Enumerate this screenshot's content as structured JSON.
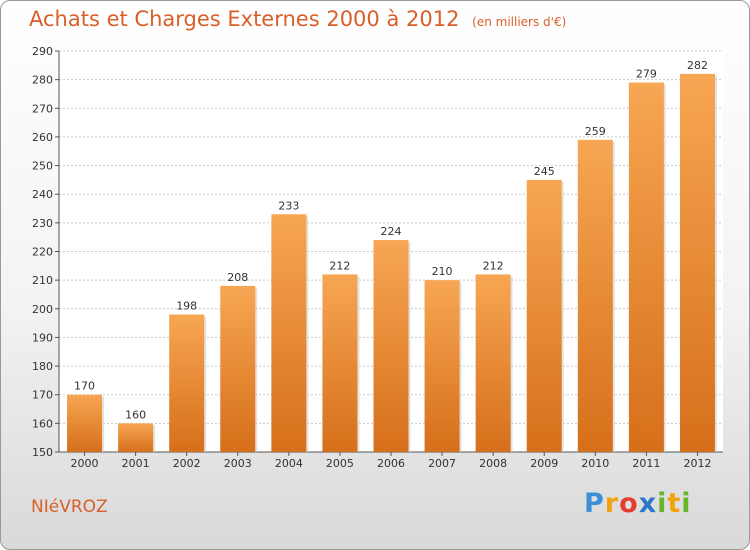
{
  "header": {
    "title": "Achats et Charges Externes 2000 à 2012",
    "subtitle": "(en milliers d'€)"
  },
  "footer": {
    "commune": "NIéVROZ",
    "logo_letters": [
      {
        "ch": "P",
        "color": "#3a8fd8"
      },
      {
        "ch": "r",
        "color": "#f2a20d"
      },
      {
        "ch": "o",
        "color": "#e43d2f"
      },
      {
        "ch": "x",
        "color": "#2b76c6"
      },
      {
        "ch": "i",
        "color": "#67b52b"
      },
      {
        "ch": "t",
        "color": "#f2a20d"
      },
      {
        "ch": "i",
        "color": "#67b52b"
      }
    ]
  },
  "colors": {
    "bar_top": "#f7a653",
    "bar_bottom": "#d66f1a",
    "accent": "#d95f2a",
    "grid": "#c8c8c8"
  },
  "chart_data": {
    "type": "bar",
    "categories": [
      "2000",
      "2001",
      "2002",
      "2003",
      "2004",
      "2005",
      "2006",
      "2007",
      "2008",
      "2009",
      "2010",
      "2011",
      "2012"
    ],
    "values": [
      170,
      160,
      198,
      208,
      233,
      212,
      224,
      210,
      212,
      245,
      259,
      279,
      282
    ],
    "title": "Achats et Charges Externes 2000 à 2012",
    "subtitle": "(en milliers d'€)",
    "xlabel": "",
    "ylabel": "",
    "ylim": [
      150,
      290
    ],
    "yticks": [
      150,
      160,
      170,
      180,
      190,
      200,
      210,
      220,
      230,
      240,
      250,
      260,
      270,
      280,
      290
    ],
    "grid": true,
    "legend": "none"
  }
}
